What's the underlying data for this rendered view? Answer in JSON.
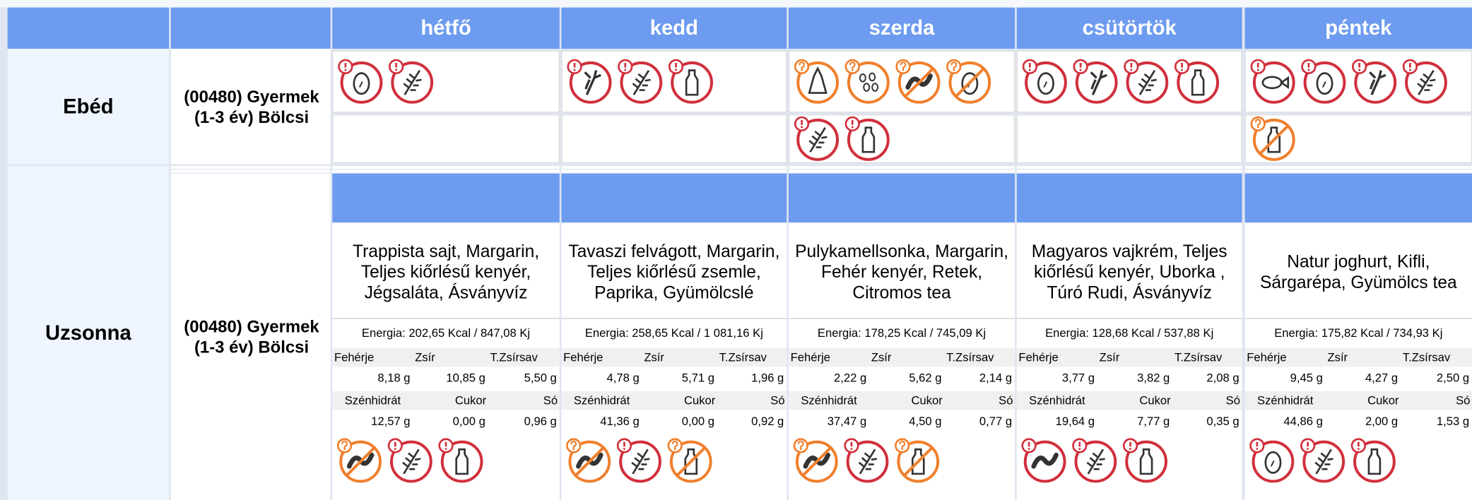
{
  "columns": [
    "hétfő",
    "kedd",
    "szerda",
    "csütörtök",
    "péntek"
  ],
  "nutrient_labels": [
    "Fehérje",
    "Zsír",
    "T.Zsírsav",
    "Szénhidrát",
    "Cukor",
    "Só"
  ],
  "meals": [
    {
      "name": "Ebéd",
      "group": "(00480) Gyermek (1-3 év) Bölcsi"
    },
    {
      "name": "Uzsonna",
      "group": "(00480) Gyermek (1-3 év) Bölcsi",
      "days": [
        {
          "menu": "Trappista sajt, Margarin, Teljes kiőrlésű kenyér, Jégsaláta, Ásványvíz",
          "energy": "Energia: 202,65 Kcal / 847,08 Kj",
          "values": [
            "8,18 g",
            "10,85 g",
            "5,50 g",
            "12,57 g",
            "0,00 g",
            "0,96 g"
          ]
        },
        {
          "menu": "Tavaszi felvágott, Margarin, Teljes kiőrlésű zsemle, Paprika, Gyümölcslé",
          "energy": "Energia: 258,65 Kcal / 1 081,16 Kj",
          "values": [
            "4,78 g",
            "5,71 g",
            "1,96 g",
            "41,36 g",
            "0,00 g",
            "0,92 g"
          ]
        },
        {
          "menu": "Pulykamellsonka, Margarin, Fehér kenyér, Retek, Citromos tea",
          "energy": "Energia: 178,25 Kcal / 745,09 Kj",
          "values": [
            "2,22 g",
            "5,62 g",
            "2,14 g",
            "37,47 g",
            "4,50 g",
            "0,77 g"
          ]
        },
        {
          "menu": "Magyaros vajkrém, Teljes kiőrlésű kenyér, Uborka , Túró Rudi, Ásványvíz",
          "energy": "Energia: 128,68 Kcal / 537,88 Kj",
          "values": [
            "3,77 g",
            "3,82 g",
            "2,08 g",
            "19,64 g",
            "7,77 g",
            "0,35 g"
          ]
        },
        {
          "menu": "Natur joghurt, Kifli, Sárgarépa, Gyümölcs tea",
          "energy": "Energia: 175,82 Kcal / 734,93 Kj",
          "values": [
            "9,45 g",
            "4,27 g",
            "2,50 g",
            "44,86 g",
            "2,00 g",
            "1,53 g"
          ]
        }
      ]
    }
  ]
}
